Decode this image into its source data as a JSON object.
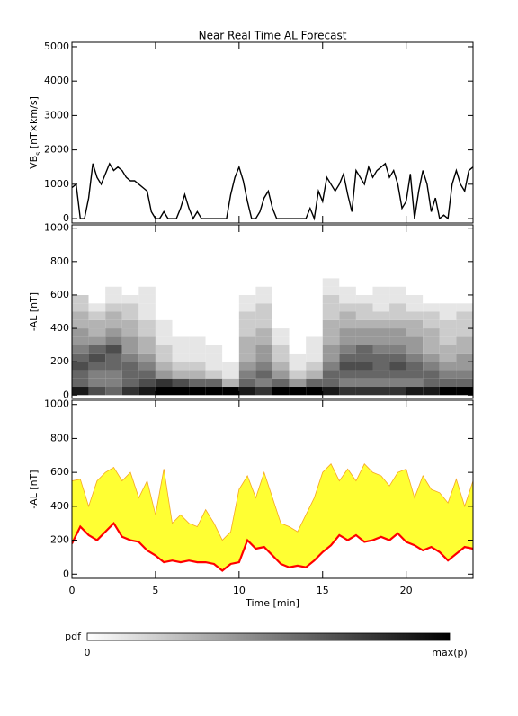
{
  "title": "Near Real Time AL Forecast",
  "colorbar": {
    "label": "pdf",
    "min_label": "0",
    "max_label": "max(p)"
  },
  "chart_data": [
    {
      "type": "line",
      "ylabel_parts": [
        "VB",
        "s",
        " [nT×km/s]"
      ],
      "color": "#000000",
      "xlim": [
        0,
        24
      ],
      "ylim": [
        -130,
        5130
      ],
      "yticks": [
        0,
        1000,
        2000,
        3000,
        4000,
        5000
      ],
      "xticks": [
        0,
        5,
        10,
        15,
        20
      ],
      "x": [
        0,
        0.25,
        0.5,
        0.75,
        1,
        1.25,
        1.5,
        1.75,
        2,
        2.25,
        2.5,
        2.75,
        3,
        3.25,
        3.5,
        3.75,
        4,
        4.25,
        4.5,
        4.75,
        5,
        5.25,
        5.5,
        5.75,
        6,
        6.25,
        6.5,
        6.75,
        7,
        7.25,
        7.5,
        7.75,
        8,
        8.25,
        8.5,
        8.75,
        9,
        9.25,
        9.5,
        9.75,
        10,
        10.25,
        10.5,
        10.75,
        11,
        11.25,
        11.5,
        11.75,
        12,
        12.25,
        12.5,
        12.75,
        13,
        13.25,
        13.5,
        13.75,
        14,
        14.25,
        14.5,
        14.75,
        15,
        15.25,
        15.5,
        15.75,
        16,
        16.25,
        16.5,
        16.75,
        17,
        17.25,
        17.5,
        17.75,
        18,
        18.25,
        18.5,
        18.75,
        19,
        19.25,
        19.5,
        19.75,
        20,
        20.25,
        20.5,
        20.75,
        21,
        21.25,
        21.5,
        21.75,
        22,
        22.25,
        22.5,
        22.75,
        23,
        23.25,
        23.5,
        23.75,
        24
      ],
      "values": [
        900,
        1000,
        0,
        0,
        600,
        1600,
        1200,
        1000,
        1300,
        1600,
        1400,
        1500,
        1400,
        1200,
        1100,
        1100,
        1000,
        900,
        800,
        200,
        0,
        0,
        200,
        0,
        0,
        0,
        300,
        700,
        300,
        0,
        200,
        0,
        0,
        0,
        0,
        0,
        0,
        0,
        700,
        1200,
        1500,
        1100,
        500,
        0,
        0,
        200,
        600,
        800,
        300,
        0,
        0,
        0,
        0,
        0,
        0,
        0,
        0,
        300,
        0,
        800,
        500,
        1200,
        1000,
        800,
        1000,
        1300,
        700,
        200,
        1400,
        1200,
        1000,
        1500,
        1200,
        1400,
        1500,
        1600,
        1200,
        1400,
        1000,
        300,
        500,
        1300,
        0,
        800,
        1400,
        1000,
        200,
        600,
        0,
        100,
        0,
        1000,
        1400,
        1000,
        800,
        1400,
        1500
      ]
    },
    {
      "type": "heatmap",
      "ylabel": "-AL [nT]",
      "xlim": [
        0,
        24
      ],
      "ylim": [
        -20,
        1020
      ],
      "yticks": [
        0,
        200,
        400,
        600,
        800,
        1000
      ],
      "xticks": [
        0,
        5,
        10,
        15,
        20
      ],
      "xbins": [
        0,
        1,
        2,
        3,
        4,
        5,
        6,
        7,
        8,
        9,
        10,
        11,
        12,
        13,
        14,
        15,
        16,
        17,
        18,
        19,
        20,
        21,
        22,
        23,
        24
      ],
      "ybins": [
        0,
        50,
        100,
        150,
        200,
        250,
        300,
        350,
        400,
        450,
        500,
        550,
        600,
        650,
        700
      ],
      "pdf": [
        [
          0.9,
          0.7,
          0.6,
          0.8,
          0.9,
          1,
          1,
          1,
          1,
          1,
          0.9,
          0.8,
          1,
          1,
          1,
          0.9,
          0.8,
          0.8,
          0.8,
          0.8,
          0.9,
          0.9,
          1,
          1
        ],
        [
          0.6,
          0.5,
          0.5,
          0.6,
          0.7,
          0.8,
          0.7,
          0.6,
          0.6,
          0.3,
          0.6,
          0.5,
          0.6,
          0.4,
          0.6,
          0.6,
          0.5,
          0.5,
          0.5,
          0.5,
          0.5,
          0.6,
          0.6,
          0.6
        ],
        [
          0.6,
          0.5,
          0.5,
          0.6,
          0.6,
          0.4,
          0.3,
          0.3,
          0.2,
          0.1,
          0.5,
          0.6,
          0.4,
          0.2,
          0.3,
          0.6,
          0.6,
          0.6,
          0.6,
          0.6,
          0.6,
          0.6,
          0.5,
          0.5
        ],
        [
          0.7,
          0.6,
          0.6,
          0.6,
          0.5,
          0.3,
          0.2,
          0.2,
          0.1,
          0.1,
          0.4,
          0.5,
          0.3,
          0.1,
          0.2,
          0.5,
          0.7,
          0.7,
          0.6,
          0.7,
          0.6,
          0.5,
          0.4,
          0.4
        ],
        [
          0.6,
          0.7,
          0.6,
          0.5,
          0.4,
          0.2,
          0.1,
          0.1,
          0.1,
          0,
          0.3,
          0.4,
          0.2,
          0.1,
          0.1,
          0.4,
          0.6,
          0.6,
          0.6,
          0.6,
          0.5,
          0.4,
          0.3,
          0.4
        ],
        [
          0.5,
          0.6,
          0.7,
          0.4,
          0.3,
          0.2,
          0.1,
          0.1,
          0.1,
          0,
          0.3,
          0.4,
          0.2,
          0,
          0.1,
          0.4,
          0.5,
          0.6,
          0.5,
          0.5,
          0.4,
          0.3,
          0.3,
          0.3
        ],
        [
          0.4,
          0.4,
          0.5,
          0.4,
          0.3,
          0.1,
          0.1,
          0.1,
          0,
          0,
          0.3,
          0.3,
          0.1,
          0,
          0.1,
          0.3,
          0.4,
          0.4,
          0.4,
          0.4,
          0.4,
          0.3,
          0.2,
          0.3
        ],
        [
          0.4,
          0.3,
          0.4,
          0.3,
          0.2,
          0.1,
          0,
          0,
          0,
          0,
          0.2,
          0.3,
          0.1,
          0,
          0,
          0.3,
          0.4,
          0.4,
          0.4,
          0.4,
          0.3,
          0.3,
          0.2,
          0.2
        ],
        [
          0.3,
          0.3,
          0.3,
          0.3,
          0.2,
          0.1,
          0,
          0,
          0,
          0,
          0.2,
          0.2,
          0,
          0,
          0,
          0.3,
          0.3,
          0.3,
          0.3,
          0.3,
          0.3,
          0.2,
          0.2,
          0.2
        ],
        [
          0.3,
          0.2,
          0.3,
          0.2,
          0.1,
          0,
          0,
          0,
          0,
          0,
          0.2,
          0.2,
          0,
          0,
          0,
          0.2,
          0.3,
          0.2,
          0.2,
          0.2,
          0.2,
          0.2,
          0.1,
          0.2
        ],
        [
          0.2,
          0.1,
          0.2,
          0.2,
          0.1,
          0,
          0,
          0,
          0,
          0,
          0.1,
          0.2,
          0,
          0,
          0,
          0.2,
          0.2,
          0.2,
          0.1,
          0.2,
          0.1,
          0.1,
          0.1,
          0.1
        ],
        [
          0.2,
          0,
          0.1,
          0.1,
          0.1,
          0,
          0,
          0,
          0,
          0,
          0.1,
          0.1,
          0,
          0,
          0,
          0.2,
          0.1,
          0.1,
          0.1,
          0.1,
          0.1,
          0,
          0,
          0
        ],
        [
          0,
          0,
          0.1,
          0,
          0.1,
          0,
          0,
          0,
          0,
          0,
          0,
          0.1,
          0,
          0,
          0,
          0.1,
          0.1,
          0,
          0.1,
          0.1,
          0,
          0,
          0,
          0
        ],
        [
          0,
          0,
          0,
          0,
          0,
          0,
          0,
          0,
          0,
          0,
          0,
          0,
          0,
          0,
          0,
          0.1,
          0,
          0,
          0,
          0,
          0,
          0,
          0,
          0
        ]
      ]
    },
    {
      "type": "band",
      "ylabel": "-AL [nT]",
      "xlabel": "Time [min]",
      "fill_color": "#ffff33",
      "upper_color": "#f5a623",
      "median_color": "#ff0000",
      "xlim": [
        0,
        24
      ],
      "ylim": [
        -25,
        1025
      ],
      "yticks": [
        0,
        200,
        400,
        600,
        800,
        1000
      ],
      "xticks": [
        0,
        5,
        10,
        15,
        20
      ],
      "x": [
        0,
        0.5,
        1,
        1.5,
        2,
        2.5,
        3,
        3.5,
        4,
        4.5,
        5,
        5.5,
        6,
        6.5,
        7,
        7.5,
        8,
        8.5,
        9,
        9.5,
        10,
        10.5,
        11,
        11.5,
        12,
        12.5,
        13,
        13.5,
        14,
        14.5,
        15,
        15.5,
        16,
        16.5,
        17,
        17.5,
        18,
        18.5,
        19,
        19.5,
        20,
        20.5,
        21,
        21.5,
        22,
        22.5,
        23,
        23.5,
        24
      ],
      "upper": [
        550,
        560,
        400,
        550,
        600,
        630,
        550,
        600,
        450,
        550,
        350,
        620,
        300,
        350,
        300,
        280,
        380,
        300,
        200,
        250,
        500,
        580,
        450,
        600,
        450,
        300,
        280,
        250,
        350,
        450,
        600,
        650,
        550,
        620,
        550,
        650,
        600,
        580,
        520,
        600,
        620,
        450,
        580,
        500,
        480,
        420,
        560,
        400,
        550
      ],
      "median": [
        180,
        280,
        230,
        200,
        250,
        300,
        220,
        200,
        190,
        140,
        110,
        70,
        80,
        70,
        80,
        70,
        70,
        60,
        20,
        60,
        70,
        200,
        150,
        160,
        110,
        60,
        40,
        50,
        40,
        80,
        130,
        170,
        230,
        200,
        230,
        190,
        200,
        220,
        200,
        240,
        190,
        170,
        140,
        160,
        130,
        80,
        120,
        160,
        150
      ]
    }
  ]
}
